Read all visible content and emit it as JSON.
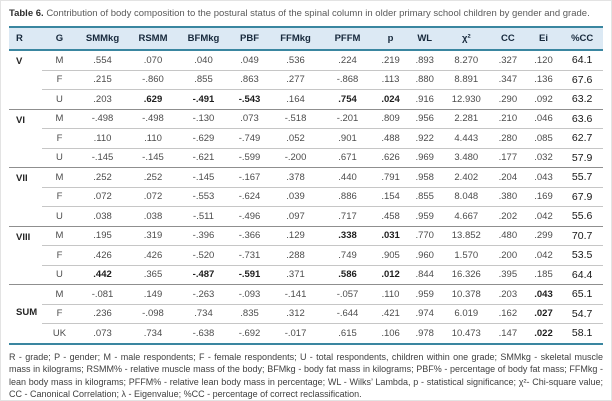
{
  "colors": {
    "accent_border": "#3a86a0",
    "header_bg": "#dce9f4",
    "group_line": "#8f8f8f",
    "row_line": "#c6c6c6"
  },
  "title": {
    "label": "Table 6.",
    "text": "Contribution of body composition to the postural status of the spinal column in older primary school children by gender and grade."
  },
  "table": {
    "columns": [
      "R",
      "G",
      "SMMkg",
      "RSMM",
      "BFMkg",
      "PBF",
      "FFMkg",
      "PFFM",
      "p",
      "WL",
      "χ²",
      "CC",
      "Ei",
      "%CC"
    ],
    "groups": [
      {
        "grade": "V",
        "rows": [
          {
            "gender": "M",
            "values": [
              ".554",
              ".070",
              ".040",
              ".049",
              ".536",
              ".224",
              ".219",
              ".893",
              "8.270",
              ".327",
              ".120",
              "64.1"
            ],
            "bold": []
          },
          {
            "gender": "F",
            "values": [
              ".215",
              "-.860",
              ".855",
              ".863",
              ".277",
              "-.868",
              ".113",
              ".880",
              "8.891",
              ".347",
              ".136",
              "67.6"
            ],
            "bold": []
          },
          {
            "gender": "U",
            "values": [
              ".203",
              ".629",
              "-.491",
              "-.543",
              ".164",
              ".754",
              ".024",
              ".916",
              "12.930",
              ".290",
              ".092",
              "63.2"
            ],
            "bold": [
              1,
              2,
              3,
              5,
              6
            ]
          }
        ]
      },
      {
        "grade": "VI",
        "rows": [
          {
            "gender": "M",
            "values": [
              "-.498",
              "-.498",
              "-.130",
              ".073",
              "-.518",
              "-.201",
              ".809",
              ".956",
              "2.281",
              ".210",
              ".046",
              "63.6"
            ],
            "bold": []
          },
          {
            "gender": "F",
            "values": [
              ".110",
              ".110",
              "-.629",
              "-.749",
              ".052",
              ".901",
              ".488",
              ".922",
              "4.443",
              ".280",
              ".085",
              "62.7"
            ],
            "bold": []
          },
          {
            "gender": "U",
            "values": [
              "-.145",
              "-.145",
              "-.621",
              "-.599",
              "-.200",
              ".671",
              ".626",
              ".969",
              "3.480",
              ".177",
              ".032",
              "57.9"
            ],
            "bold": []
          }
        ]
      },
      {
        "grade": "VII",
        "rows": [
          {
            "gender": "M",
            "values": [
              ".252",
              ".252",
              "-.145",
              "-.167",
              ".378",
              ".440",
              ".791",
              ".958",
              "2.402",
              ".204",
              ".043",
              "55.7"
            ],
            "bold": []
          },
          {
            "gender": "F",
            "values": [
              ".072",
              ".072",
              "-.553",
              "-.624",
              ".039",
              ".886",
              ".154",
              ".855",
              "8.048",
              ".380",
              ".169",
              "67.9"
            ],
            "bold": []
          },
          {
            "gender": "U",
            "values": [
              ".038",
              ".038",
              "-.511",
              "-.496",
              ".097",
              ".717",
              ".458",
              ".959",
              "4.667",
              ".202",
              ".042",
              "55.6"
            ],
            "bold": []
          }
        ]
      },
      {
        "grade": "VIII",
        "rows": [
          {
            "gender": "M",
            "values": [
              ".195",
              ".319",
              "-.396",
              "-.366",
              ".129",
              ".338",
              ".031",
              ".770",
              "13.852",
              ".480",
              ".299",
              "70.7"
            ],
            "bold": [
              5,
              6
            ]
          },
          {
            "gender": "F",
            "values": [
              ".426",
              ".426",
              "-.520",
              "-.731",
              ".288",
              ".749",
              ".905",
              ".960",
              "1.570",
              ".200",
              ".042",
              "53.5"
            ],
            "bold": []
          },
          {
            "gender": "U",
            "values": [
              ".442",
              ".365",
              "-.487",
              "-.591",
              ".371",
              ".586",
              ".012",
              ".844",
              "16.326",
              ".395",
              ".185",
              "64.4"
            ],
            "bold": [
              0,
              2,
              3,
              5,
              6
            ]
          }
        ]
      },
      {
        "grade": "SUM",
        "rows": [
          {
            "gender": "M",
            "values": [
              "-.081",
              ".149",
              "-.263",
              "-.093",
              "-.141",
              "-.057",
              ".110",
              ".959",
              "10.378",
              ".203",
              ".043",
              "65.1"
            ],
            "bold": [
              10
            ]
          },
          {
            "gender": "F",
            "values": [
              ".236",
              "-.098",
              ".734",
              ".835",
              ".312",
              "-.644",
              ".421",
              ".974",
              "6.019",
              ".162",
              ".027",
              "54.7"
            ],
            "bold": [
              10
            ]
          },
          {
            "gender": "UK",
            "values": [
              ".073",
              ".734",
              "-.638",
              "-.692",
              "-.017",
              ".615",
              ".106",
              ".978",
              "10.473",
              ".147",
              ".022",
              "58.1"
            ],
            "bold": [
              10
            ]
          }
        ]
      }
    ]
  },
  "footnote": "R - grade; P - gender; M - male respondents; F - female respondents; U - total respondents, children within one grade; SMMkg - skeletal muscle mass in kilograms; RSMM% - relative muscle mass of the body; BFMkg - body fat mass in kilograms; PBF% - percentage of body fat mass; FFMkg - lean body mass in kilograms; PFFM% - relative lean body mass in percentage; WL - Wilks’ Lambda, p - statistical significance; χ²- Chi-square value; CC - Canonical Correlation; λ - Eigenvalue; %CC - percentage of correct reclassification."
}
